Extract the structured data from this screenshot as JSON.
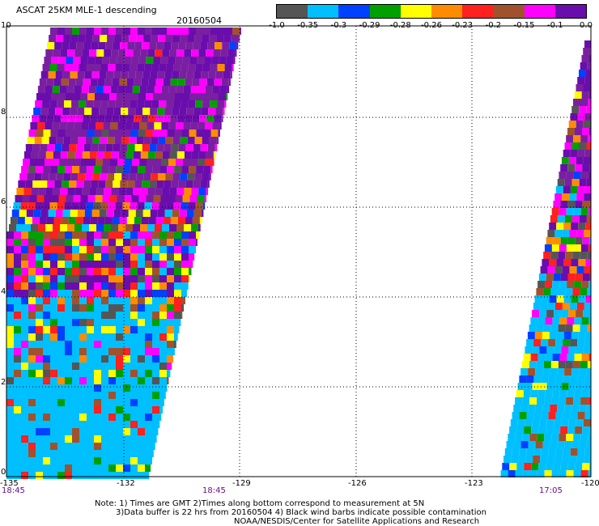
{
  "header": {
    "title": "ASCAT 25KM MLE-1 descending",
    "date": "20160504"
  },
  "colorbar": {
    "labels": [
      "-1.0",
      "-0.35",
      "-0.3",
      "-0.29",
      "-0.28",
      "-0.26",
      "-0.23",
      "-0.2",
      "-0.15",
      "-0.1",
      "0.0"
    ],
    "colors": [
      "#555555",
      "#00bfff",
      "#0040ff",
      "#00a000",
      "#ffff00",
      "#ff8c00",
      "#ff2020",
      "#a0522d",
      "#ff00ff",
      "#6a0dad"
    ]
  },
  "axes": {
    "x_ticks": [
      "-135",
      "-132",
      "-129",
      "-126",
      "-123",
      "-120"
    ],
    "y_ticks": [
      "0",
      "2",
      "4",
      "6",
      "8",
      "10"
    ]
  },
  "times": {
    "left": "18:45",
    "middle": "18:45",
    "right": "17:05"
  },
  "notes": {
    "line1": "Note: 1) Times are GMT 2)Times along bottom correspond to measurement at 5N",
    "line2": "3)Data buffer is 22 hrs from 20160504 4) Black wind barbs indicate possible contamination",
    "line3": "NOAA/NESDIS/Center for Satellite Applications and Research"
  }
}
